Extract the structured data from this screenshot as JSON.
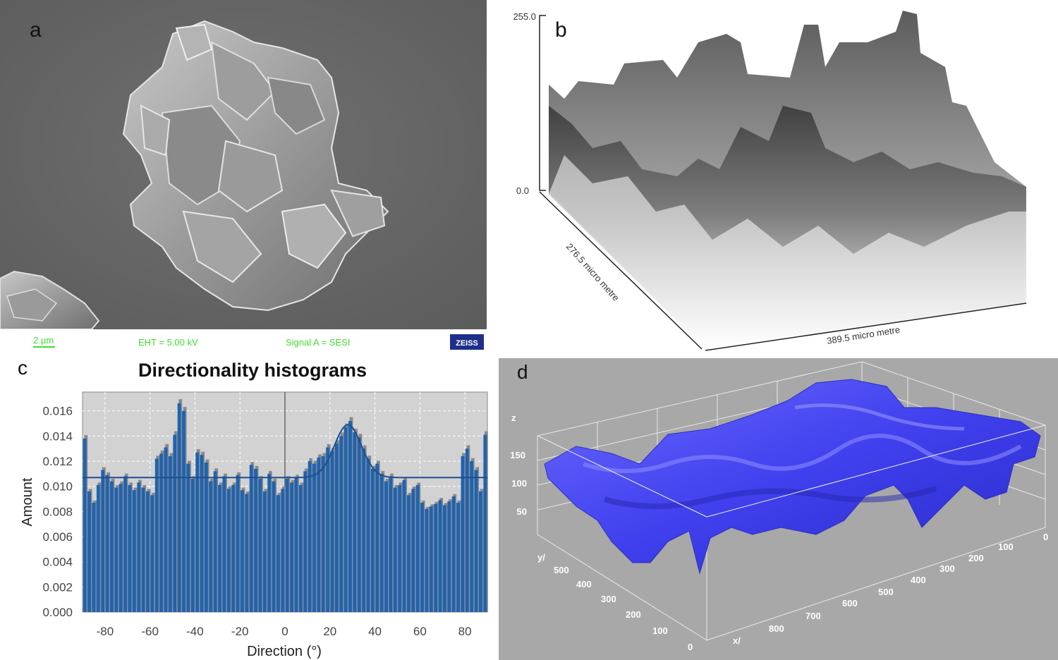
{
  "panel_a": {
    "letter": "a",
    "scale_bar": "2 µm",
    "eht": "EHT =  5.00 kV",
    "signal": "Signal A = SESI",
    "logo": "ZEISS"
  },
  "panel_b": {
    "letter": "b",
    "z_max": "255.0",
    "z_min": "0.0",
    "depth_label": "276.5 micro metre",
    "width_label": "389.5 micro metre"
  },
  "panel_d": {
    "letter": "d",
    "z_label": "z",
    "z_ticks": [
      "150",
      "100",
      "50"
    ],
    "y_label": "y/",
    "y_ticks": [
      "500",
      "400",
      "300",
      "200",
      "100",
      "0"
    ],
    "x_label": "x/",
    "x_ticks": [
      "800",
      "700",
      "600",
      "500",
      "400",
      "300",
      "200",
      "100",
      "0"
    ],
    "surface_color": "#4848f0"
  },
  "chart_data": {
    "letter": "c",
    "type": "bar",
    "title": "Directionality histograms",
    "xlabel": "Direction (°)",
    "ylabel": "Amount",
    "xlim": [
      -90,
      90
    ],
    "ylim": [
      0,
      0.0175
    ],
    "xticks": [
      "-80",
      "-60",
      "-40",
      "-20",
      "0",
      "20",
      "40",
      "60",
      "80"
    ],
    "yticks": [
      "0.000",
      "0.002",
      "0.004",
      "0.006",
      "0.008",
      "0.010",
      "0.012",
      "0.014",
      "0.016"
    ],
    "grid": true,
    "bar_color": "#1f63b0",
    "bin_width": 2,
    "x": [
      -89,
      -87,
      -85,
      -83,
      -81,
      -79,
      -77,
      -75,
      -73,
      -71,
      -69,
      -67,
      -65,
      -63,
      -61,
      -59,
      -57,
      -55,
      -53,
      -51,
      -49,
      -47,
      -45,
      -43,
      -41,
      -39,
      -37,
      -35,
      -33,
      -31,
      -29,
      -27,
      -25,
      -23,
      -21,
      -19,
      -17,
      -15,
      -13,
      -11,
      -9,
      -7,
      -5,
      -3,
      -1,
      1,
      3,
      5,
      7,
      9,
      11,
      13,
      15,
      17,
      19,
      21,
      23,
      25,
      27,
      29,
      31,
      33,
      35,
      37,
      39,
      41,
      43,
      45,
      47,
      49,
      51,
      53,
      55,
      57,
      59,
      61,
      63,
      65,
      67,
      69,
      71,
      73,
      75,
      77,
      79,
      81,
      83,
      85,
      87,
      89
    ],
    "values": [
      0.0138,
      0.0096,
      0.0087,
      0.0101,
      0.0113,
      0.0109,
      0.0104,
      0.0099,
      0.0102,
      0.0108,
      0.0101,
      0.0097,
      0.0103,
      0.0099,
      0.0096,
      0.0093,
      0.0122,
      0.0126,
      0.0131,
      0.0124,
      0.0141,
      0.0166,
      0.016,
      0.0118,
      0.0106,
      0.0127,
      0.0125,
      0.0119,
      0.0104,
      0.0112,
      0.0101,
      0.0108,
      0.0098,
      0.0101,
      0.0109,
      0.0097,
      0.0094,
      0.0117,
      0.0114,
      0.0106,
      0.0096,
      0.011,
      0.0104,
      0.0093,
      0.0098,
      0.0106,
      0.0103,
      0.0107,
      0.0101,
      0.0112,
      0.012,
      0.0118,
      0.0123,
      0.0124,
      0.0131,
      0.0128,
      0.0134,
      0.014,
      0.0147,
      0.0152,
      0.0143,
      0.0139,
      0.013,
      0.0122,
      0.0114,
      0.0118,
      0.011,
      0.0104,
      0.0108,
      0.0099,
      0.0101,
      0.0105,
      0.0093,
      0.0098,
      0.0101,
      0.0087,
      0.0082,
      0.0084,
      0.0086,
      0.0089,
      0.0085,
      0.0088,
      0.0092,
      0.0087,
      0.0124,
      0.013,
      0.012,
      0.0113,
      0.0096,
      0.0141
    ],
    "fit_label": "",
    "fit_baseline": 0.0107,
    "fit_peak": {
      "center": 28,
      "amplitude": 0.0042,
      "sigma": 6
    }
  }
}
